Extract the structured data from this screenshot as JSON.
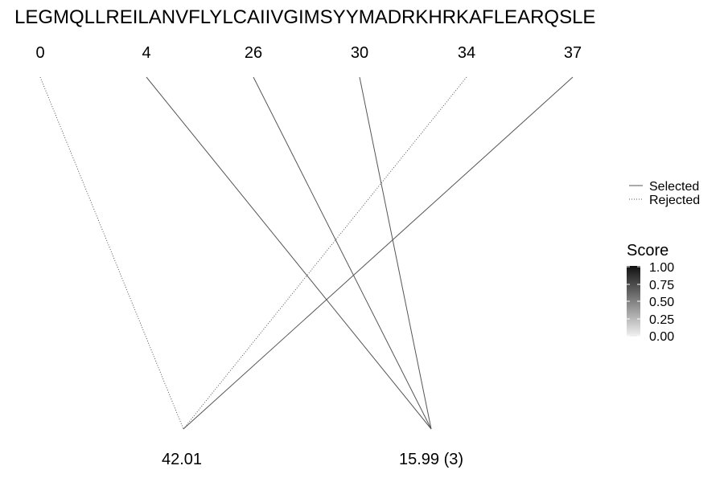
{
  "sequence": "LEGMQLLREILANVFLYLCAIIVGIMSYYMADRKHRKAFLEARQSLE",
  "positions": [
    {
      "label": "0"
    },
    {
      "label": "4"
    },
    {
      "label": "26"
    },
    {
      "label": "30"
    },
    {
      "label": "34"
    },
    {
      "label": "37"
    }
  ],
  "masses": [
    {
      "label": "42.01"
    },
    {
      "label": "15.99 (3)"
    }
  ],
  "links": [
    {
      "from": 0,
      "to": 0,
      "status": "Rejected"
    },
    {
      "from": 1,
      "to": 1,
      "status": "Selected"
    },
    {
      "from": 2,
      "to": 1,
      "status": "Selected"
    },
    {
      "from": 3,
      "to": 1,
      "status": "Selected"
    },
    {
      "from": 4,
      "to": 0,
      "status": "Rejected"
    },
    {
      "from": 5,
      "to": 0,
      "status": "Selected"
    }
  ],
  "legend": {
    "selected": "Selected",
    "rejected": "Rejected"
  },
  "score_legend": {
    "title": "Score",
    "ticks": [
      "1.00",
      "0.75",
      "0.50",
      "0.25",
      "0.00"
    ]
  },
  "colors": {
    "line": "#555555",
    "text": "#000000"
  }
}
